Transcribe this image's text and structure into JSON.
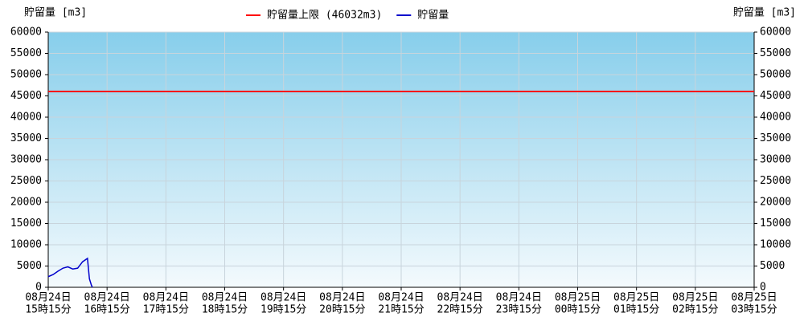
{
  "chart_data": {
    "type": "line",
    "y_title": "貯留量 [m3]",
    "y2_title": "貯留量 [m3]",
    "ylim": [
      0,
      60000
    ],
    "yticks": [
      0,
      5000,
      10000,
      15000,
      20000,
      25000,
      30000,
      35000,
      40000,
      45000,
      50000,
      55000,
      60000
    ],
    "y2lim": [
      0,
      60000
    ],
    "y2ticks": [
      0,
      5000,
      10000,
      15000,
      20000,
      25000,
      30000,
      35000,
      40000,
      45000,
      50000,
      55000,
      60000
    ],
    "xlim": [
      "08-24 15:15",
      "08-25 03:15"
    ],
    "xticks": [
      {
        "value": "08-24 15:15",
        "label": [
          "08月24日",
          "15時15分"
        ]
      },
      {
        "value": "08-24 16:15",
        "label": [
          "08月24日",
          "16時15分"
        ]
      },
      {
        "value": "08-24 17:15",
        "label": [
          "08月24日",
          "17時15分"
        ]
      },
      {
        "value": "08-24 18:15",
        "label": [
          "08月24日",
          "18時15分"
        ]
      },
      {
        "value": "08-24 19:15",
        "label": [
          "08月24日",
          "19時15分"
        ]
      },
      {
        "value": "08-24 20:15",
        "label": [
          "08月24日",
          "20時15分"
        ]
      },
      {
        "value": "08-24 21:15",
        "label": [
          "08月24日",
          "21時15分"
        ]
      },
      {
        "value": "08-24 22:15",
        "label": [
          "08月24日",
          "22時15分"
        ]
      },
      {
        "value": "08-24 23:15",
        "label": [
          "08月24日",
          "23時15分"
        ]
      },
      {
        "value": "08-25 00:15",
        "label": [
          "08月25日",
          "00時15分"
        ]
      },
      {
        "value": "08-25 01:15",
        "label": [
          "08月25日",
          "01時15分"
        ]
      },
      {
        "value": "08-25 02:15",
        "label": [
          "08月25日",
          "02時15分"
        ]
      },
      {
        "value": "08-25 03:15",
        "label": [
          "08月25日",
          "03時15分"
        ]
      }
    ],
    "grid": true,
    "hline": {
      "name": "貯留量上限 (46032m3)",
      "color": "#ff0000",
      "value": 46032
    },
    "series": [
      {
        "name": "貯留量",
        "color": "#0000cc",
        "x": [
          "08-24 15:15",
          "08-24 15:20",
          "08-24 15:25",
          "08-24 15:30",
          "08-24 15:35",
          "08-24 15:40",
          "08-24 15:45",
          "08-24 15:50",
          "08-24 15:55",
          "08-24 15:57",
          "08-24 15:59",
          "08-24 16:00"
        ],
        "values": [
          2500,
          3000,
          3800,
          4500,
          4800,
          4300,
          4500,
          6000,
          6800,
          2000,
          500,
          0
        ]
      }
    ]
  }
}
